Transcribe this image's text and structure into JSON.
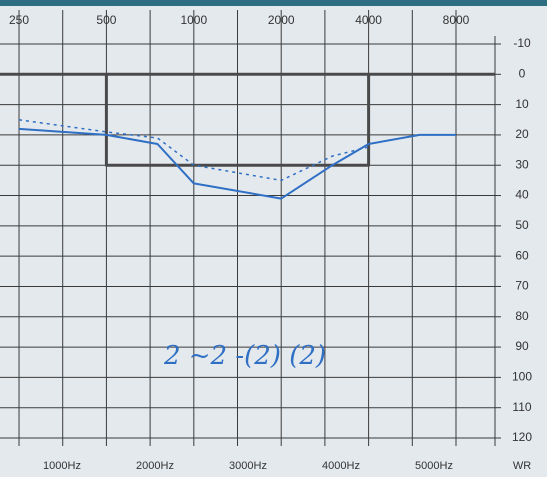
{
  "chart_data": {
    "type": "line",
    "log_x": true,
    "xlim": [
      215,
      10900
    ],
    "xticks": [
      250,
      500,
      1000,
      2000,
      4000,
      8000
    ],
    "ylim": [
      -10,
      120
    ],
    "y_inverted": true,
    "yticks": [
      -10,
      0,
      10,
      20,
      30,
      40,
      50,
      60,
      70,
      80,
      90,
      100,
      110,
      120
    ],
    "grid": true,
    "bottom_labels": [
      "1000Hz",
      "2000Hz",
      "3000Hz",
      "4000Hz",
      "5000Hz",
      "WR"
    ],
    "annotation": "2   ~2   -(2) (2)",
    "series": [
      {
        "color": "#4a4a4a",
        "width": 3,
        "x": [
          215,
          10900
        ],
        "values": [
          0,
          0
        ]
      },
      {
        "color": "#4a4a4a",
        "width": 3,
        "x": [
          500,
          500,
          4000,
          4000
        ],
        "values": [
          0,
          30,
          30,
          0
        ]
      },
      {
        "color": "#2f6fc4",
        "width": 2,
        "x": [
          250,
          500,
          750,
          1000,
          2000,
          3000,
          4000,
          6000,
          8000
        ],
        "values": [
          18,
          20,
          23,
          36,
          41,
          30,
          23,
          20,
          20
        ]
      },
      {
        "color": "#2f6fc4",
        "width": 1.5,
        "dash": true,
        "x": [
          250,
          500,
          750,
          1000,
          2000,
          3000,
          4000
        ],
        "values": [
          15,
          19,
          21,
          30,
          35,
          27,
          24
        ]
      }
    ]
  }
}
